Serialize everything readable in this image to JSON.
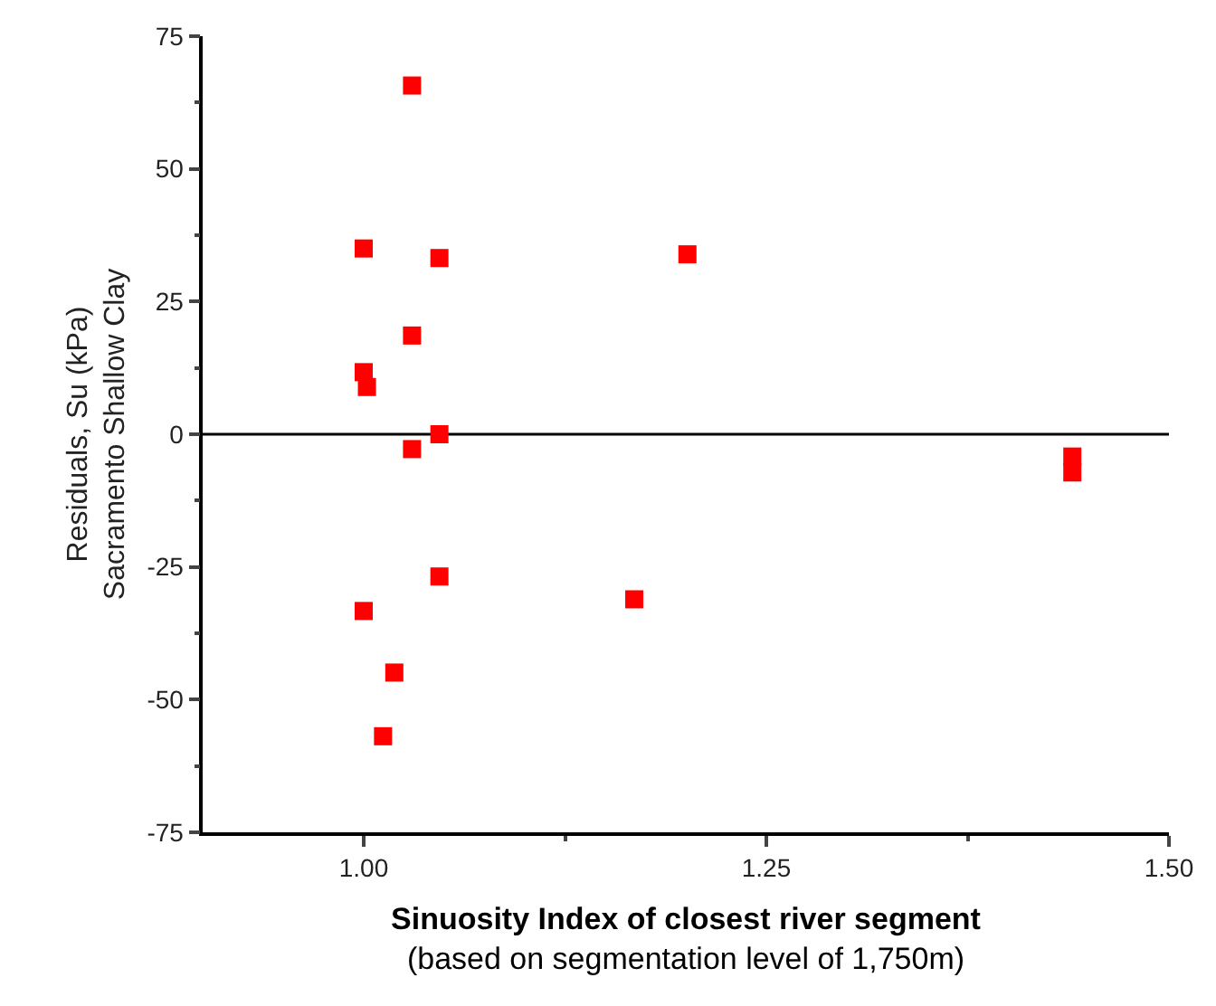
{
  "chart_data": {
    "type": "scatter",
    "xlabel": "Sinuosity Index of closest river segment\n(based on segmentation level of 1,750m)",
    "ylabel": "Residuals, Su (kPa)\nSacramento Shallow Clay",
    "x": [
      1.03,
      1.0,
      1.047,
      1.201,
      1.03,
      1.0,
      1.002,
      1.047,
      1.03,
      1.44,
      1.44,
      1.047,
      1.168,
      1.0,
      1.019,
      1.012
    ],
    "series": [
      {
        "color": "#ff0000",
        "values": [
          65.7,
          35.0,
          33.2,
          33.9,
          18.6,
          11.7,
          8.9,
          0,
          -2.8,
          -4.2,
          -7.2,
          -26.8,
          -31.1,
          -33.3,
          -44.9,
          -56.9
        ]
      }
    ],
    "marker": "square",
    "xlim": [
      0.9,
      1.5
    ],
    "xticks": [
      {
        "value": 1.0,
        "label": "1.00"
      },
      {
        "value": 1.25,
        "label": "1.25"
      },
      {
        "value": 1.5,
        "label": "1.50"
      }
    ],
    "ylim": [
      -75,
      75
    ],
    "yticks": [
      -75,
      -50,
      -25,
      0,
      25,
      50,
      75
    ],
    "ref_lines": [
      {
        "axis": "y",
        "value": 0,
        "color": "#000000"
      }
    ],
    "grid": false
  }
}
